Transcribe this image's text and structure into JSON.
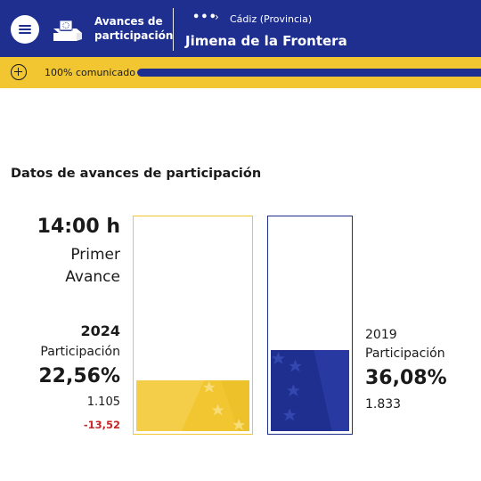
{
  "header": {
    "brand_line1": "Avances de",
    "brand_line2": "participación",
    "breadcrumb_more": "•••",
    "breadcrumb_chevron": "›",
    "breadcrumb_province": "Cádiz (Provincia)",
    "municipality": "Jimena de la Frontera",
    "icons": {
      "menu": "hamburger-menu-icon",
      "logo": "ballot-box-icon"
    }
  },
  "progress": {
    "label": "100%  comunicado",
    "fraction": 1.0,
    "icon": "plus-circle-icon"
  },
  "section": {
    "title": "Datos de avances de participación"
  },
  "current": {
    "time": "14:00 h",
    "avance_line1": "Primer",
    "avance_line2": "Avance",
    "year": "2024",
    "participation_label": "Participación",
    "percentage_text": "22,56%",
    "percentage": 22.56,
    "votes": "1.105",
    "difference": "-13,52"
  },
  "previous": {
    "year": "2019",
    "participation_label": "Participación",
    "percentage_text": "36,08%",
    "percentage": 36.08,
    "votes": "1.833"
  },
  "colors": {
    "brand_blue": "#1f2f8f",
    "brand_yellow": "#f2c631",
    "negative_red": "#c62828"
  }
}
